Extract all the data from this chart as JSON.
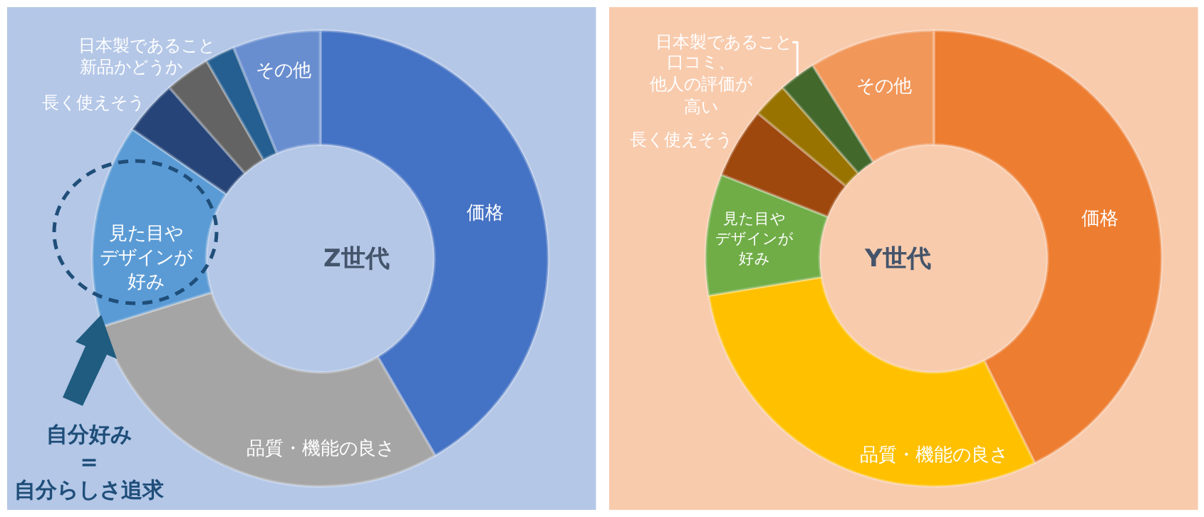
{
  "chart_data": [
    {
      "type": "donut",
      "title": "Z世代",
      "categories": [
        "価格",
        "品質・機能の良さ",
        "見た目やデザインが好み",
        "長く使えそう",
        "新品かどうか",
        "日本製であること",
        "その他"
      ],
      "values": [
        41.6,
        28.6,
        14.4,
        3.9,
        3.2,
        2.1,
        6.2
      ],
      "colors": [
        "#4472c4",
        "#a5a5a5",
        "#5b9bd5",
        "#264478",
        "#636363",
        "#255e91",
        "#698ed0"
      ],
      "annotations": [
        "自分好み\n=\n自分らしさ追求"
      ]
    },
    {
      "type": "donut",
      "title": "Y世代",
      "categories": [
        "価格",
        "品質・機能の良さ",
        "見た目やデザインが好み",
        "長く使えそう",
        "口コミ、他人の評価が高い",
        "日本製であること",
        "その他"
      ],
      "values": [
        42.7,
        29.7,
        8.6,
        5.0,
        2.5,
        2.6,
        8.9
      ],
      "colors": [
        "#ed7d31",
        "#ffc000",
        "#70ad47",
        "#9e480e",
        "#997300",
        "#43682b",
        "#f1975a"
      ]
    }
  ]
}
